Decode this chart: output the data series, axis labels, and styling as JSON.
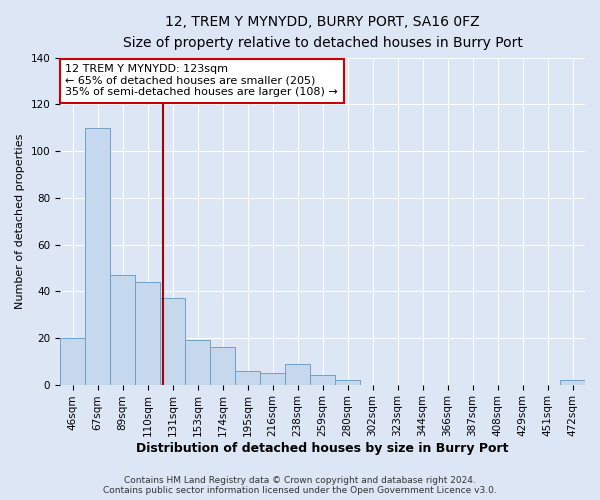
{
  "title": "12, TREM Y MYNYDD, BURRY PORT, SA16 0FZ",
  "subtitle": "Size of property relative to detached houses in Burry Port",
  "xlabel": "Distribution of detached houses by size in Burry Port",
  "ylabel": "Number of detached properties",
  "categories": [
    "46sqm",
    "67sqm",
    "89sqm",
    "110sqm",
    "131sqm",
    "153sqm",
    "174sqm",
    "195sqm",
    "216sqm",
    "238sqm",
    "259sqm",
    "280sqm",
    "302sqm",
    "323sqm",
    "344sqm",
    "366sqm",
    "387sqm",
    "408sqm",
    "429sqm",
    "451sqm",
    "472sqm"
  ],
  "values": [
    20,
    110,
    47,
    44,
    37,
    19,
    16,
    6,
    5,
    9,
    4,
    2,
    0,
    0,
    0,
    0,
    0,
    0,
    0,
    0,
    2
  ],
  "bar_color": "#c5d8ee",
  "bar_edge_color": "#6fa0c8",
  "ylim": [
    0,
    140
  ],
  "yticks": [
    0,
    20,
    40,
    60,
    80,
    100,
    120,
    140
  ],
  "vline_color": "#aa0000",
  "annotation_text": "12 TREM Y MYNYDD: 123sqm\n← 65% of detached houses are smaller (205)\n35% of semi-detached houses are larger (108) →",
  "annotation_box_color": "#ffffff",
  "annotation_box_edge_color": "#cc0000",
  "footer_line1": "Contains HM Land Registry data © Crown copyright and database right 2024.",
  "footer_line2": "Contains public sector information licensed under the Open Government Licence v3.0.",
  "background_color": "#dce6f5",
  "plot_background_color": "#dce6f5",
  "grid_color": "#ffffff",
  "title_fontsize": 10,
  "subtitle_fontsize": 9,
  "xlabel_fontsize": 9,
  "ylabel_fontsize": 8,
  "annotation_fontsize": 8,
  "tick_fontsize": 7.5,
  "footer_fontsize": 6.5
}
